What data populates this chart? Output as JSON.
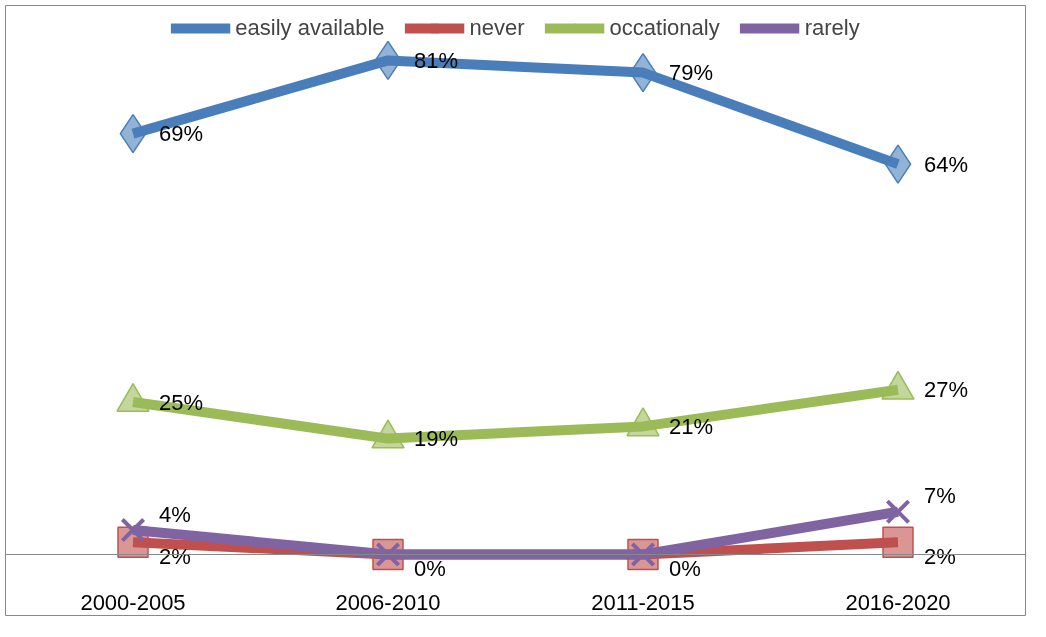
{
  "chart_data": {
    "type": "line",
    "categories": [
      "2000-2005",
      "2006-2010",
      "2011-2015",
      "2016-2020"
    ],
    "series": [
      {
        "name": "easily available",
        "color": "#4a7ebb",
        "marker": "diamond",
        "values": [
          69,
          81,
          79,
          64
        ],
        "value_labels": [
          "69%",
          "81%",
          "79%",
          "64%"
        ]
      },
      {
        "name": "never",
        "color": "#c0504d",
        "marker": "square",
        "values": [
          2,
          0,
          0,
          2
        ],
        "value_labels": [
          "2%",
          "0%",
          "0%",
          "2%"
        ]
      },
      {
        "name": "occationaly",
        "color": "#9bbb59",
        "marker": "triangle",
        "values": [
          25,
          19,
          21,
          27
        ],
        "value_labels": [
          "25%",
          "19%",
          "21%",
          "27%"
        ]
      },
      {
        "name": "rarely",
        "color": "#8064a2",
        "marker": "cross",
        "values": [
          4,
          0,
          0,
          7
        ],
        "value_labels": [
          "4%",
          null,
          null,
          "7%"
        ]
      }
    ],
    "ylim": [
      -10,
      90
    ],
    "tick_labels": "x",
    "grid": false,
    "legend": "top"
  }
}
